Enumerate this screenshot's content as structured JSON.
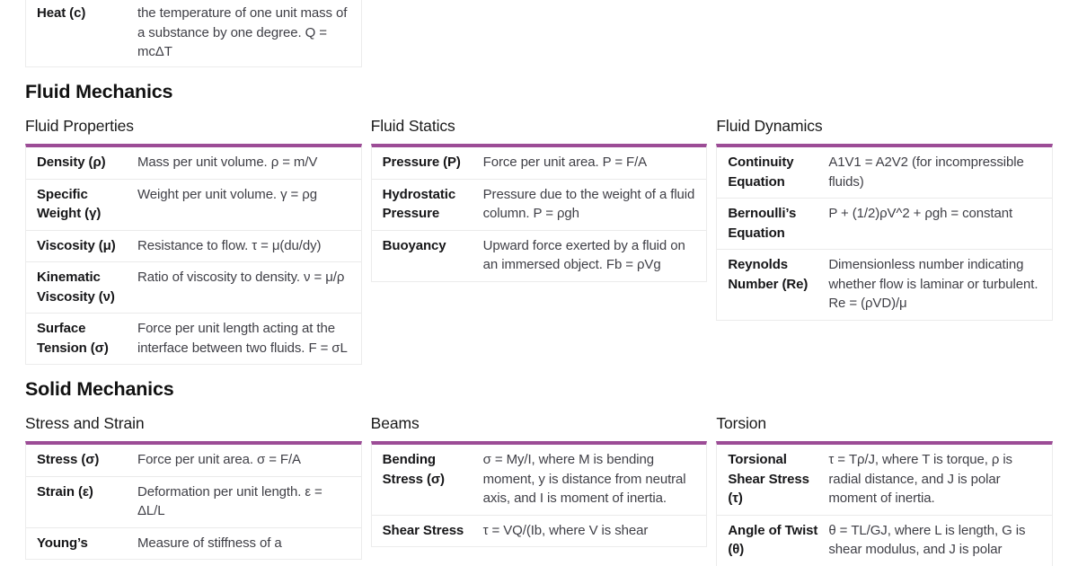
{
  "colors": {
    "accent": "#9c4c96",
    "term_text": "#161618",
    "description_text": "#3f3f46",
    "border": "#ececec",
    "background": "#ffffff"
  },
  "top_partial_table": {
    "rows": [
      {
        "term": "Heat (c)",
        "desc": "the temperature of one unit mass of a substance by one degree. Q = mcΔT"
      }
    ]
  },
  "sections": [
    {
      "title": "Fluid Mechanics",
      "tables": [
        {
          "heading": "Fluid Properties",
          "rows": [
            {
              "term": "Density (ρ)",
              "desc": "Mass per unit volume. ρ = m/V"
            },
            {
              "term": "Specific Weight (γ)",
              "desc": "Weight per unit volume. γ = ρg"
            },
            {
              "term": "Viscosity (μ)",
              "desc": "Resistance to flow. τ = μ(du/dy)"
            },
            {
              "term": "Kinematic Viscosity (ν)",
              "desc": "Ratio of viscosity to density. ν = μ/ρ"
            },
            {
              "term": "Surface Tension (σ)",
              "desc": "Force per unit length acting at the interface between two fluids. F = σL"
            }
          ]
        },
        {
          "heading": "Fluid Statics",
          "rows": [
            {
              "term": "Pressure (P)",
              "desc": "Force per unit area. P = F/A"
            },
            {
              "term": "Hydrostatic Pressure",
              "desc": "Pressure due to the weight of a fluid column. P = ρgh"
            },
            {
              "term": "Buoyancy",
              "desc": "Upward force exerted by a fluid on an immersed object. Fb = ρVg"
            }
          ]
        },
        {
          "heading": "Fluid Dynamics",
          "rows": [
            {
              "term": "Continuity Equation",
              "desc": "A1V1 = A2V2 (for incompressible fluids)"
            },
            {
              "term": "Bernoulli’s Equation",
              "desc": "P + (1/2)ρV^2 + ρgh = constant"
            },
            {
              "term": "Reynolds Number (Re)",
              "desc": "Dimensionless number indicating whether flow is laminar or turbulent. Re = (ρVD)/μ"
            }
          ]
        }
      ]
    },
    {
      "title": "Solid Mechanics",
      "tables": [
        {
          "heading": "Stress and Strain",
          "rows": [
            {
              "term": "Stress (σ)",
              "desc": "Force per unit area. σ = F/A"
            },
            {
              "term": "Strain (ε)",
              "desc": "Deformation per unit length. ε = ΔL/L"
            },
            {
              "term": "Young’s",
              "desc": "Measure of stiffness of a"
            }
          ]
        },
        {
          "heading": "Beams",
          "rows": [
            {
              "term": "Bending Stress (σ)",
              "desc": "σ = My/I, where M is bending moment, y is distance from neutral axis, and I is moment of inertia."
            },
            {
              "term": "Shear Stress",
              "desc": "τ = VQ/(Ib, where V is shear"
            }
          ]
        },
        {
          "heading": "Torsion",
          "rows": [
            {
              "term": "Torsional Shear Stress (τ)",
              "desc": "τ = Tρ/J, where T is torque, ρ is radial distance, and J is polar moment of inertia."
            },
            {
              "term": "Angle of Twist (θ)",
              "desc": "θ = TL/GJ, where L is length, G is shear modulus, and J is polar"
            }
          ]
        }
      ]
    }
  ]
}
